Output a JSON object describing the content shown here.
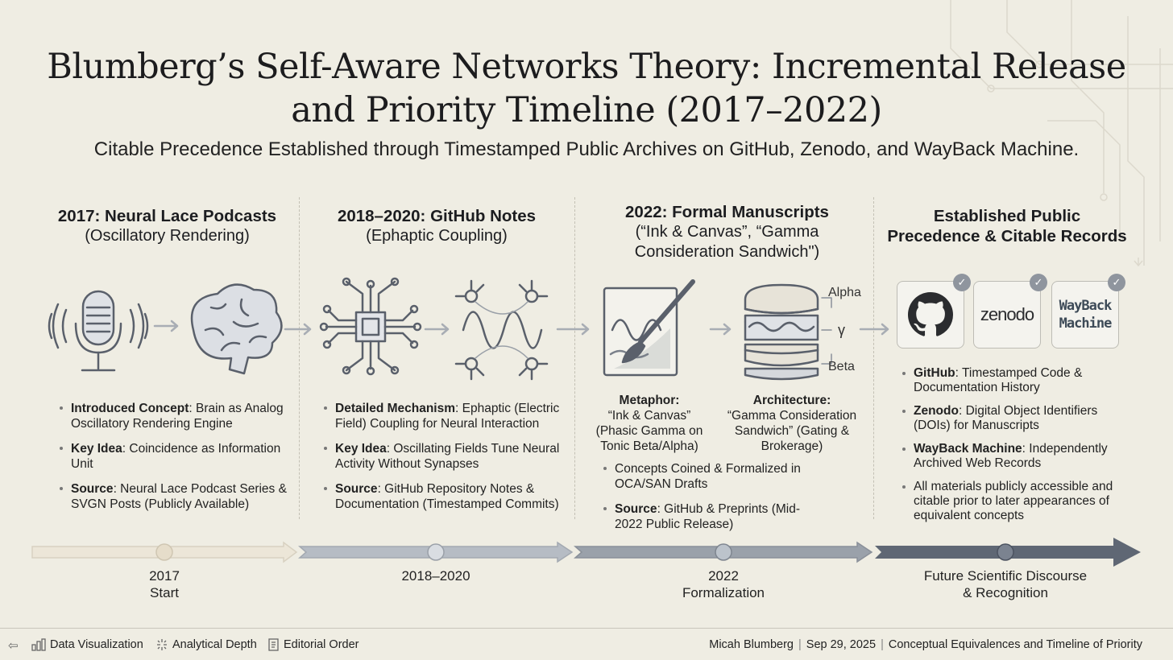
{
  "title_line1": "Blumberg’s Self-Aware Networks Theory: Incremental Release",
  "title_line2": "and Priority Timeline (2017–2022)",
  "subtitle": "Citable Precedence Established through Timestamped Public Archives on GitHub, Zenodo, and WayBack Machine.",
  "sections": [
    {
      "heading": "2017: Neural Lace Podcasts",
      "sub": "(Oscillatory Rendering)",
      "bullets": [
        {
          "label": "Introduced Concept",
          "text": ": Brain as Analog Oscillatory Rendering Engine"
        },
        {
          "label": "Key Idea",
          "text": ": Coincidence as Information Unit"
        },
        {
          "label": "Source",
          "text": ": Neural Lace Podcast Series & SVGN Posts (Publicly Available)"
        }
      ]
    },
    {
      "heading": "2018–2020: GitHub Notes",
      "sub": "(Ephaptic Coupling)",
      "bullets": [
        {
          "label": "Detailed Mechanism",
          "text": ": Ephaptic (Electric Field) Coupling for Neural Interaction"
        },
        {
          "label": "Key Idea",
          "text": ": Oscillating Fields Tune Neural Activity Without Synapses"
        },
        {
          "label": "Source",
          "text": ": GitHub Repository Notes & Documentation (Timestamped Commits)"
        }
      ]
    },
    {
      "heading": "2022: Formal Manuscripts",
      "sub": "(“Ink & Canvas”, “Gamma Consideration Sandwich\")",
      "captions": [
        {
          "label": "Metaphor:",
          "text": "“Ink & Canvas” (Phasic Gamma on Tonic Beta/Alpha)"
        },
        {
          "label": "Architecture:",
          "text": "“Gamma Consideration Sandwich” (Gating & Brokerage)"
        }
      ],
      "sandwich_labels": {
        "alpha": "Alpha",
        "gamma": "γ",
        "beta": "Beta"
      },
      "bullets": [
        {
          "label": "",
          "text": "Concepts Coined & Formalized in OCA/SAN Drafts"
        },
        {
          "label": "Source",
          "text": ": GitHub & Preprints (Mid-2022 Public Release)"
        }
      ]
    },
    {
      "heading": "Established Public Precedence & Citable Records",
      "logos": {
        "zenodo": "zenodo",
        "wayback_line1": "WayBack",
        "wayback_line2": "Machine"
      },
      "bullets": [
        {
          "label": "GitHub",
          "text": ": Timestamped Code & Documentation History"
        },
        {
          "label": "Zenodo",
          "text": ": Digital Object Identifiers (DOIs) for Manuscripts"
        },
        {
          "label": "WayBack Machine",
          "text": ": Independently Archived Web Records"
        },
        {
          "label": "",
          "text": "All materials publicly accessible and citable prior to later appearances of equivalent concepts"
        }
      ]
    }
  ],
  "timeline": [
    {
      "line1": "2017",
      "line2": "Start"
    },
    {
      "line1": "2018–2020",
      "line2": ""
    },
    {
      "line1": "2022",
      "line2": "Formalization"
    },
    {
      "line1": "Future Scientific Discourse",
      "line2": "& Recognition"
    }
  ],
  "footer": {
    "left_items": [
      {
        "icon": "bar-chart-icon",
        "label": "Data Visualization"
      },
      {
        "icon": "sparkle-icon",
        "label": "Analytical Depth"
      },
      {
        "icon": "document-icon",
        "label": "Editorial Order"
      }
    ],
    "author": "Micah Blumberg",
    "date": "Sep 29, 2025",
    "topic": "Conceptual Equivalences and Timeline of Priority"
  },
  "colors": {
    "background": "#efede3",
    "timeline_light": "#ece6d8",
    "timeline_mid": "#aab0b8",
    "timeline_dark": "#5c6470",
    "icon_stroke": "#5a606b"
  }
}
